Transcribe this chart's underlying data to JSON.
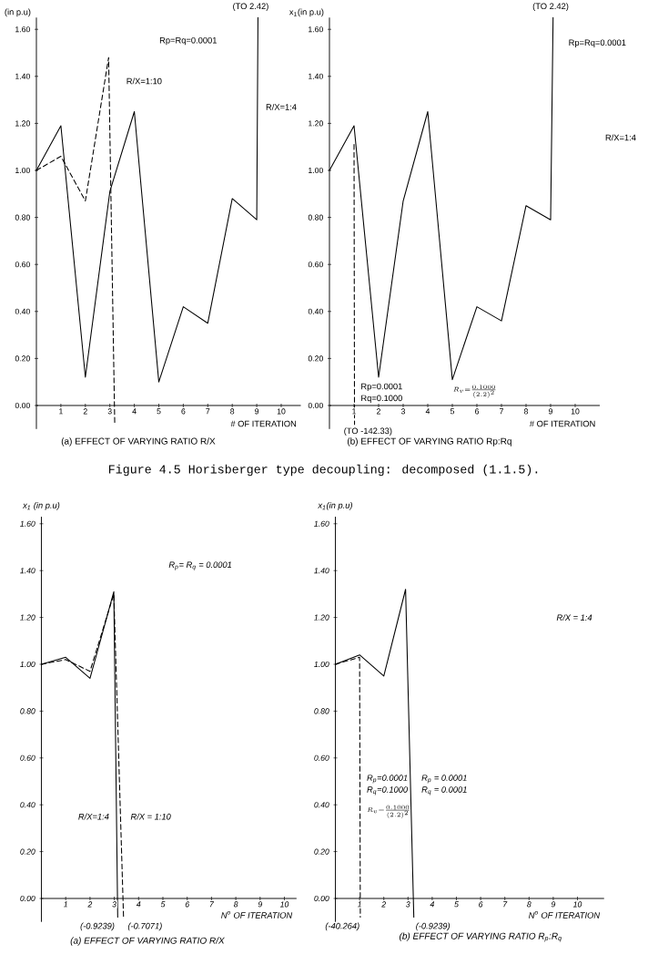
{
  "chart_data": [
    {
      "type": "line",
      "title": "(a) EFFECT OF VARYING RATIO R/X",
      "xlabel": "# OF ITERATION",
      "ylabel": "(in p.u)",
      "annotations": [
        "Rp=Rq=0.0001",
        {
          "text": "(TO 2.42)",
          "x": 9.05,
          "y": 1.65
        },
        "Figure 4.5 Horisberger type decoupling: decomposed (1.1.5)."
      ],
      "xlim": [
        0,
        10.8
      ],
      "ylim": [
        -0.1,
        1.65
      ],
      "xticks": [
        1,
        2,
        3,
        4,
        5,
        6,
        7,
        8,
        9,
        10
      ],
      "yticks": [
        {
          "value": 0,
          "label": "0.00"
        },
        {
          "value": 0.2,
          "label": "0.20"
        },
        {
          "value": 0.4,
          "label": "0.40"
        },
        {
          "value": 0.6,
          "label": "0.60"
        },
        {
          "value": 0.8,
          "label": "0.80"
        },
        {
          "value": 1.0,
          "label": "1.00"
        },
        {
          "value": 1.2,
          "label": "1.20"
        },
        {
          "value": 1.4,
          "label": "1.40"
        },
        {
          "value": 1.6,
          "label": "1.60"
        }
      ],
      "series": [
        {
          "name": "R/X=1:4",
          "color": "#000000",
          "line_style": "solid",
          "x": [
            0,
            1,
            2,
            3,
            4,
            5,
            6,
            7,
            8,
            9,
            9.05
          ],
          "values": [
            1.0,
            1.19,
            0.12,
            0.91,
            1.25,
            0.1,
            0.42,
            0.35,
            0.88,
            0.79,
            1.65
          ]
        },
        {
          "name": "R/X=1:10",
          "color": "#000000",
          "line_style": "dashed",
          "x": [
            0,
            1,
            2,
            2.95,
            3.2
          ],
          "values": [
            1.0,
            1.06,
            0.87,
            1.48,
            -0.08
          ]
        }
      ]
    },
    {
      "type": "line",
      "title": "(b) EFFECT OF VARYING RATIO Rp:Rq",
      "xlabel": "# OF ITERATION",
      "ylabel": "x$_{1}$(in p.u)",
      "annotations": [
        "Rp=Rq=0.0001",
        "R/X=1:4",
        "Rp=0.0001",
        "Rq=0.1000",
        "R_{v} = \\frac{0.1000}{(2.2)^{2}}",
        {
          "text": "(TO 2.42)",
          "x": 9.1,
          "y": 1.65
        },
        {
          "text": "(TO -142.33)",
          "x": 1,
          "y": -0.08
        }
      ],
      "xlim": [
        0,
        11
      ],
      "ylim": [
        -0.1,
        1.65
      ],
      "xticks": [
        1,
        2,
        3,
        4,
        5,
        6,
        7,
        8,
        9,
        10
      ],
      "yticks": [
        {
          "value": 0,
          "label": "0.00"
        },
        {
          "value": 0.2,
          "label": "0.20"
        },
        {
          "value": 0.4,
          "label": "0.40"
        },
        {
          "value": 0.6,
          "label": "0.60"
        },
        {
          "value": 0.8,
          "label": "0.80"
        },
        {
          "value": 1.0,
          "label": "1.00"
        },
        {
          "value": 1.2,
          "label": "1.20"
        },
        {
          "value": 1.4,
          "label": "1.40"
        },
        {
          "value": 1.6,
          "label": "1.60"
        }
      ],
      "series": [
        {
          "color": "#000000",
          "line_style": "solid",
          "x": [
            0,
            1,
            2,
            3,
            4,
            5,
            6,
            7,
            8,
            9,
            9.1
          ],
          "values": [
            1.0,
            1.19,
            0.12,
            0.87,
            1.25,
            0.11,
            0.42,
            0.36,
            0.85,
            0.79,
            1.65
          ]
        },
        {
          "color": "#000000",
          "line_style": "dashed",
          "x": [
            1,
            1.02
          ],
          "values": [
            1.11,
            -0.08
          ]
        }
      ]
    },
    {
      "type": "line",
      "title": "(a) EFFECT OF VARYING RATIO R/X",
      "xlabel": "N$^{o}$ OF ITERATION",
      "ylabel": "x$_{1}$ (in p.u)",
      "annotations": [
        "R$_{p}$= R$_{q}$ = 0.0001",
        {
          "text": "(-0.9239)",
          "x": 3.14,
          "y": -0.08
        },
        {
          "text": "(-0.7071)",
          "x": 3.38,
          "y": -0.08
        }
      ],
      "xlim": [
        0,
        10.5
      ],
      "ylim": [
        -0.1,
        1.63
      ],
      "xticks": [
        1,
        2,
        3,
        4,
        5,
        6,
        7,
        8,
        9,
        10
      ],
      "yticks": [
        {
          "value": 0,
          "label": "0.00"
        },
        {
          "value": 0.2,
          "label": "0.20"
        },
        {
          "value": 0.4,
          "label": "0.40"
        },
        {
          "value": 0.6,
          "label": "0.60"
        },
        {
          "value": 0.8,
          "label": "0.80"
        },
        {
          "value": 1.0,
          "label": "1.00"
        },
        {
          "value": 1.2,
          "label": "1.20"
        },
        {
          "value": 1.4,
          "label": "1.40"
        },
        {
          "value": 1.6,
          "label": "1.60"
        }
      ],
      "series": [
        {
          "name": "R/X=1:4",
          "color": "#000000",
          "line_style": "solid",
          "x": [
            0,
            1,
            2,
            2.98,
            3.14
          ],
          "values": [
            1.0,
            1.03,
            0.94,
            1.31,
            -0.08
          ]
        },
        {
          "name": "R/X = 1:10",
          "color": "#000000",
          "line_style": "dashed",
          "x": [
            0,
            1,
            2,
            2.98,
            3.38
          ],
          "values": [
            1.0,
            1.02,
            0.97,
            1.3,
            -0.08
          ]
        }
      ]
    },
    {
      "type": "line",
      "title": "(b) EFFECT OF VARYING RATIO R$_{p}$:R$_{q}$",
      "xlabel": "N$^{o}$ OF ITERATION",
      "ylabel": "x$_{1}$(in p.u)",
      "annotations": [
        "R/X = 1:4",
        "R$_{p}$=0.0001",
        "R$_{q}$=0.1000",
        "R_{v} = \\frac{0.1000}{(2.2)^{2}}",
        "R$_{p}$ = 0.0001",
        "R$_{q}$ = 0.0001",
        {
          "text": "(-40.264)",
          "x": 1.03,
          "y": -0.08
        },
        {
          "text": "(-0.9239)",
          "x": 3.24,
          "y": -0.08
        }
      ],
      "xlim": [
        0,
        11.1
      ],
      "ylim": [
        -0.1,
        1.63
      ],
      "xticks": [
        1,
        2,
        3,
        4,
        5,
        6,
        7,
        8,
        9,
        10
      ],
      "yticks": [
        {
          "value": 0,
          "label": "0.00"
        },
        {
          "value": 0.2,
          "label": "0.20"
        },
        {
          "value": 0.4,
          "label": "0.40"
        },
        {
          "value": 0.6,
          "label": "0.60"
        },
        {
          "value": 0.8,
          "label": "0.80"
        },
        {
          "value": 1.0,
          "label": "1.00"
        },
        {
          "value": 1.2,
          "label": "1.20"
        },
        {
          "value": 1.4,
          "label": "1.40"
        },
        {
          "value": 1.6,
          "label": "1.60"
        }
      ],
      "series": [
        {
          "color": "#000000",
          "line_style": "solid",
          "x": [
            0,
            1,
            2,
            2.9,
            3.24
          ],
          "values": [
            1.0,
            1.04,
            0.95,
            1.32,
            -0.08
          ]
        },
        {
          "color": "#000000",
          "line_style": "dashed",
          "x": [
            0,
            1,
            1.03
          ],
          "values": [
            1.0,
            1.03,
            -0.08
          ]
        }
      ]
    }
  ]
}
